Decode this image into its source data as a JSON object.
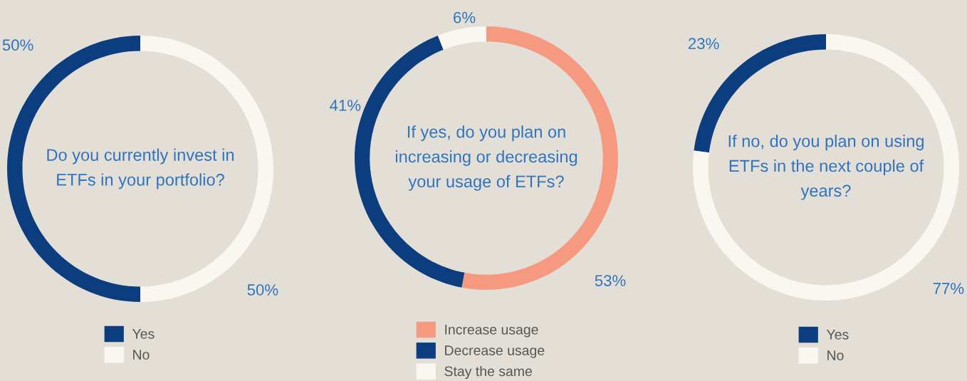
{
  "chart_data": [
    {
      "type": "donut",
      "title": "Do you currently invest in ETFs in your portfolio?",
      "categories": [
        "Yes",
        "No"
      ],
      "values": [
        50,
        50
      ],
      "colors": [
        "#0b3d7f",
        "#faf7f1"
      ],
      "value_labels": [
        "50%",
        "50%"
      ],
      "legend": "bottom"
    },
    {
      "type": "donut",
      "title": "If yes, do you plan on increasing or decreasing your usage of ETFs?",
      "categories": [
        "Increase usage",
        "Decrease usage",
        "Stay the same"
      ],
      "values": [
        53,
        41,
        6
      ],
      "colors": [
        "#f59a80",
        "#0b3d7f",
        "#faf7f1"
      ],
      "value_labels": [
        "53%",
        "41%",
        "6%"
      ],
      "legend": "bottom"
    },
    {
      "type": "donut",
      "title": "If no, do you plan on using ETFs in the next couple of years?",
      "categories": [
        "Yes",
        "No"
      ],
      "values": [
        23,
        77
      ],
      "colors": [
        "#0b3d7f",
        "#faf7f1"
      ],
      "value_labels": [
        "23%",
        "77%"
      ],
      "legend": "bottom"
    }
  ]
}
